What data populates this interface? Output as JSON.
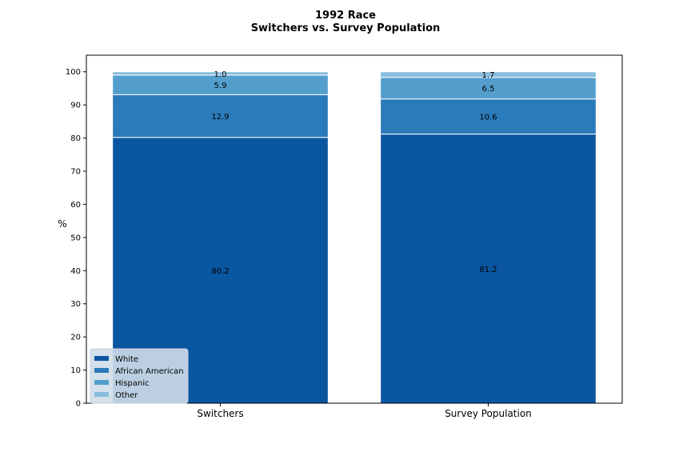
{
  "chart_data": {
    "type": "bar",
    "stacked": true,
    "title_line1": "1992 Race",
    "title_line2": "Switchers vs. Survey Population",
    "xlabel": "",
    "ylabel": "%",
    "ylim": [
      0,
      105
    ],
    "yticks": [
      0,
      10,
      20,
      30,
      40,
      50,
      60,
      70,
      80,
      90,
      100
    ],
    "categories": [
      "Switchers",
      "Survey Population"
    ],
    "series": [
      {
        "name": "White",
        "values": [
          80.2,
          81.2
        ],
        "labels": [
          "80.2",
          "81.2"
        ],
        "color": "#0b56a0"
      },
      {
        "name": "African American",
        "values": [
          12.9,
          10.6
        ],
        "labels": [
          "12.9",
          "10.6"
        ],
        "color": "#2b7bba"
      },
      {
        "name": "Hispanic",
        "values": [
          5.9,
          6.5
        ],
        "labels": [
          "5.9",
          "6.5"
        ],
        "color": "#539ecd"
      },
      {
        "name": "Other",
        "values": [
          1.0,
          1.7
        ],
        "labels": [
          "1.0",
          "1.7"
        ],
        "color": "#89bedc"
      }
    ],
    "grid": false,
    "legend_position": "lower-left",
    "legend_background": "#cfdde9"
  }
}
